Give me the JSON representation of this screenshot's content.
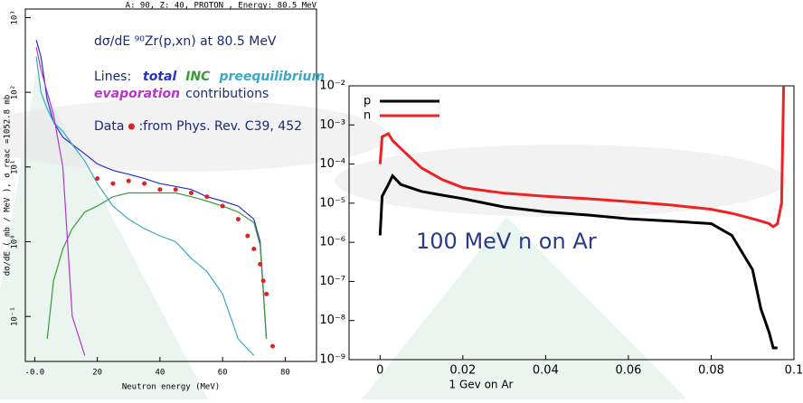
{
  "chart_data": [
    {
      "type": "line",
      "header": "A:  90, Z:  40, PROTON   , Energy:    80.5 MeV",
      "title": "dσ/dE  ⁹⁰Zr(p,xn) at 80.5 MeV",
      "lines_prefix": "Lines:",
      "lines_suffix": "contributions",
      "data_prefix": "Data",
      "data_source": ":from  Phys. Rev. C39, 452",
      "x_label": "Neutron energy (MeV)",
      "y_label": "dσ/dE ( mb / MeV ), σ_reac =1052.8 mb",
      "log_y": true,
      "xlim": [
        -3,
        90
      ],
      "ylim": [
        0.025,
        1300
      ],
      "xticks": [
        {
          "value": 0,
          "label": "-0.0"
        },
        20,
        40,
        60,
        80
      ],
      "yticks": [
        {
          "value": 0.1,
          "label": "10⁻¹"
        },
        {
          "value": 1,
          "label": "10⁰"
        },
        {
          "value": 10,
          "label": "10¹"
        },
        {
          "value": 100,
          "label": "10²"
        },
        {
          "value": 1000,
          "label": "10³"
        }
      ],
      "x": [
        0.5,
        2,
        4,
        6,
        9,
        12,
        16,
        20,
        25,
        30,
        35,
        40,
        45,
        50,
        55,
        60,
        65,
        70,
        72,
        74
      ],
      "series": [
        {
          "name": "total",
          "color": "#2233cc",
          "values": [
            500,
            300,
            80,
            40,
            25,
            20,
            15,
            11,
            9,
            8,
            7,
            6,
            5.5,
            5,
            4,
            3.5,
            3,
            2,
            1,
            0.05
          ]
        },
        {
          "name": "INC",
          "color": "#3a9a3a",
          "values": [
            null,
            null,
            0.05,
            0.3,
            0.8,
            1.5,
            2.5,
            3,
            4,
            4.5,
            4.5,
            4.5,
            4.5,
            4,
            3.5,
            3,
            2.5,
            1.8,
            0.9,
            0.05
          ]
        },
        {
          "name": "preequilibrium",
          "color": "#3aa8c8",
          "values": [
            300,
            100,
            60,
            40,
            30,
            20,
            12,
            6,
            3,
            2,
            1.5,
            1.2,
            1,
            0.6,
            0.4,
            0.2,
            0.05,
            0.03,
            null,
            null
          ]
        },
        {
          "name": "evaporation",
          "color": "#bb33cc",
          "values": [
            400,
            200,
            100,
            50,
            10,
            0.1,
            0.03,
            null,
            null,
            null,
            null,
            null,
            null,
            null,
            null,
            null,
            null,
            null,
            null,
            null
          ]
        }
      ],
      "points": {
        "color": "#dd2222",
        "x": [
          20,
          25,
          30,
          35,
          40,
          45,
          50,
          55,
          60,
          65,
          68,
          70,
          72,
          73,
          74,
          76
        ],
        "values": [
          7,
          6,
          6.5,
          6,
          5,
          5,
          4.5,
          4,
          3,
          2,
          1.2,
          0.8,
          0.5,
          0.3,
          0.2,
          0.04
        ]
      }
    },
    {
      "type": "line",
      "annotation": "100 MeV n on Ar",
      "x_label": "1 Gev on Ar",
      "log_y": true,
      "xlim": [
        -0.0075,
        0.1
      ],
      "ylim": [
        1e-09,
        0.01
      ],
      "xticks": [
        0,
        0.02,
        0.04,
        0.06,
        0.08,
        0.1
      ],
      "yticks": [
        {
          "value": 1e-09,
          "label": "10⁻⁹"
        },
        {
          "value": 1e-08,
          "label": "10⁻⁸"
        },
        {
          "value": 1e-07,
          "label": "10⁻⁷"
        },
        {
          "value": 1e-06,
          "label": "10⁻⁶"
        },
        {
          "value": 1e-05,
          "label": "10⁻⁵"
        },
        {
          "value": 0.0001,
          "label": "10⁻⁴"
        },
        {
          "value": 0.001,
          "label": "10⁻³"
        },
        {
          "value": 0.01,
          "label": "10⁻²"
        }
      ],
      "x": [
        0,
        0.0005,
        0.002,
        0.003,
        0.005,
        0.01,
        0.015,
        0.02,
        0.03,
        0.04,
        0.05,
        0.06,
        0.07,
        0.08,
        0.085,
        0.09,
        0.092,
        0.094,
        0.095,
        0.096,
        0.097,
        0.0975
      ],
      "series": [
        {
          "name": "p",
          "color": "#000000",
          "values": [
            1.5e-06,
            1.5e-05,
            3e-05,
            5e-05,
            3e-05,
            2e-05,
            1.6e-05,
            1.3e-05,
            8e-06,
            6e-06,
            5e-06,
            4e-06,
            3.5e-06,
            3e-06,
            1.5e-06,
            2e-07,
            2e-08,
            5e-09,
            2e-09,
            2e-09,
            null,
            null
          ]
        },
        {
          "name": "n",
          "color": "#ee2222",
          "values": [
            0.0001,
            0.0005,
            0.0006,
            0.0004,
            0.00025,
            8e-05,
            4e-05,
            2.5e-05,
            1.8e-05,
            1.5e-05,
            1.3e-05,
            1.1e-05,
            9e-06,
            7e-06,
            5.5e-06,
            4e-06,
            3.5e-06,
            3e-06,
            2.5e-06,
            3e-06,
            1e-05,
            0.01
          ]
        }
      ]
    }
  ]
}
